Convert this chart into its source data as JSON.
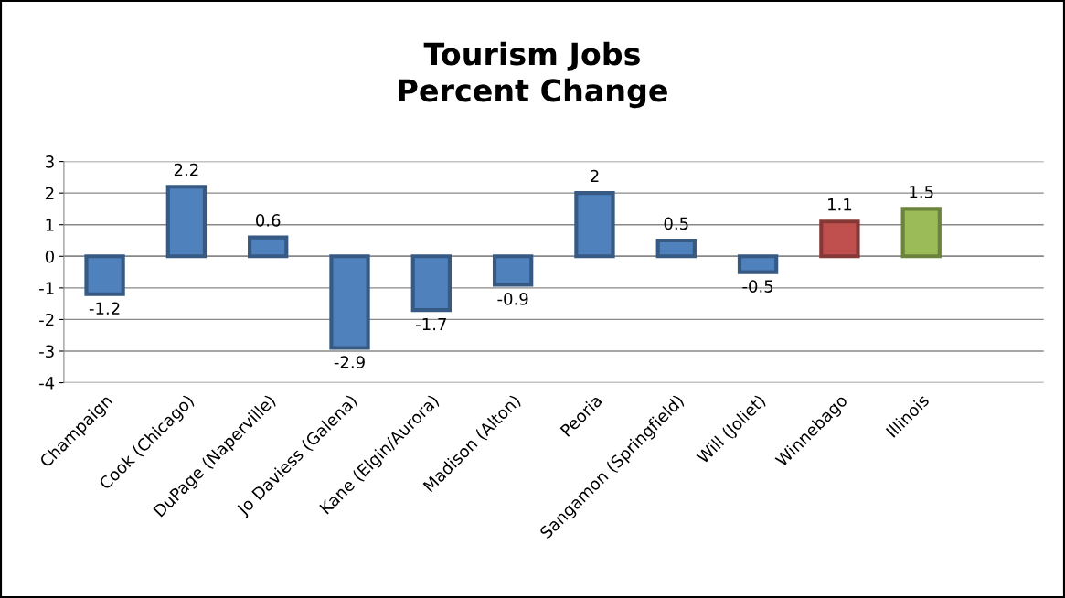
{
  "chart_data": {
    "type": "bar",
    "title": "Tourism Jobs\nPercent Change",
    "categories": [
      "Champaign",
      "Cook (Chicago)",
      "DuPage (Naperville)",
      "Jo Daviess (Galena)",
      "Kane (Elgin/Aurora)",
      "Madison (Alton)",
      "Peoria",
      "Sangamon (Springfield)",
      "Will (Joliet)",
      "Winnebago",
      "Illinois",
      null
    ],
    "values": [
      -1.2,
      2.2,
      0.6,
      -2.9,
      -1.7,
      -0.9,
      2,
      0.5,
      -0.5,
      1.1,
      1.5,
      null
    ],
    "colors": [
      "#4f81bd",
      "#4f81bd",
      "#4f81bd",
      "#4f81bd",
      "#4f81bd",
      "#4f81bd",
      "#4f81bd",
      "#4f81bd",
      "#4f81bd",
      "#c0504d",
      "#9bbb59",
      "#4f81bd"
    ],
    "ylim": [
      -4,
      3
    ],
    "yticks": [
      -4,
      -3,
      -2,
      -1,
      0,
      1,
      2,
      3
    ],
    "grid": "y",
    "data_labels": true,
    "legend": false
  }
}
